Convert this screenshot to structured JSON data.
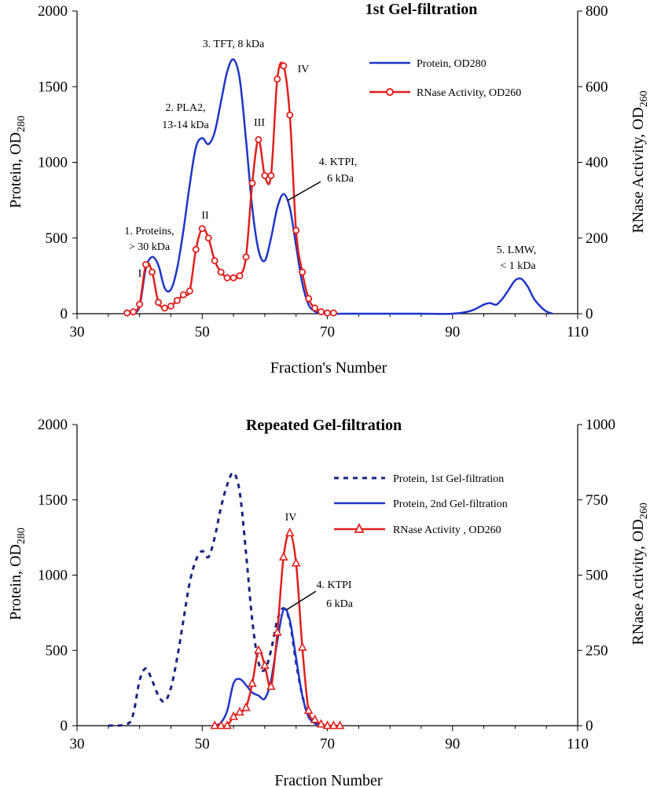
{
  "chart_data": [
    {
      "type": "line",
      "title": "1st Gel-filtration",
      "xlabel": "Fraction's Number",
      "ylabel_left": "Protein, OD",
      "ylabel_left_sub": "280",
      "ylabel_right": "RNase Activity, OD",
      "ylabel_right_sub": "260",
      "xlim": [
        30,
        110
      ],
      "ylim_left": [
        0,
        2000
      ],
      "ylim_right": [
        0,
        800
      ],
      "xticks": [
        "30",
        "50",
        "70",
        "90",
        "110"
      ],
      "yticks_left": [
        "0",
        "500",
        "1000",
        "1500",
        "2000"
      ],
      "yticks_right": [
        "0",
        "200",
        "400",
        "600",
        "800"
      ],
      "legend_position": "top-right",
      "series": [
        {
          "name": "Protein, OD280",
          "axis": "left",
          "color": "#1f35c9",
          "style": "solid",
          "marker": "none",
          "x": [
            39,
            40,
            41,
            42,
            43,
            44,
            45,
            46,
            47,
            48,
            49,
            50,
            51,
            52,
            53,
            54,
            55,
            56,
            57,
            58,
            59,
            60,
            61,
            62,
            63,
            64,
            65,
            66,
            67,
            68,
            69,
            70,
            75,
            80,
            85,
            90,
            93,
            95,
            96,
            97,
            98,
            99,
            100,
            101,
            102,
            103,
            104,
            105,
            106
          ],
          "y": [
            0,
            50,
            300,
            375,
            320,
            170,
            160,
            300,
            550,
            850,
            1100,
            1160,
            1120,
            1200,
            1400,
            1600,
            1680,
            1550,
            1150,
            700,
            420,
            350,
            500,
            700,
            790,
            700,
            450,
            200,
            60,
            15,
            5,
            0,
            0,
            0,
            0,
            0,
            20,
            60,
            70,
            60,
            100,
            160,
            220,
            230,
            180,
            100,
            50,
            15,
            0
          ]
        },
        {
          "name": "RNase Activity, OD260",
          "axis": "right",
          "color": "#e0201c",
          "style": "solid",
          "marker": "circle",
          "x": [
            38,
            39,
            40,
            41,
            42,
            43,
            44,
            45,
            46,
            47,
            48,
            49,
            50,
            51,
            52,
            53,
            54,
            55,
            56,
            57,
            58,
            59,
            60,
            61,
            62,
            63,
            64,
            65,
            66,
            67,
            68,
            69,
            70,
            71
          ],
          "y": [
            2,
            5,
            25,
            130,
            110,
            30,
            15,
            20,
            35,
            50,
            60,
            170,
            225,
            200,
            140,
            110,
            95,
            95,
            100,
            150,
            345,
            460,
            365,
            365,
            620,
            655,
            525,
            220,
            110,
            40,
            15,
            5,
            2,
            2
          ]
        }
      ],
      "annotations": {
        "a1a": "1. Proteins,",
        "a1b": "> 30 kDa",
        "a2a": "2. PLA2,",
        "a2b": "13-14 kDa",
        "a3": "3. TFT,  8 kDa",
        "a4a": "4. KTPI,",
        "a4b": "6 kDa",
        "a5a": "5. LMW,",
        "a5b": "< 1 kDa",
        "rI": "I",
        "rII": "II",
        "rIII": "III",
        "rIV": "IV"
      }
    },
    {
      "type": "line",
      "title": "Repeated Gel-filtration",
      "xlabel": "Fraction Number",
      "ylabel_left": "Protein, OD",
      "ylabel_left_sub": "280",
      "ylabel_right": "RNase Activity, OD",
      "ylabel_right_sub": "260",
      "xlim": [
        30,
        110
      ],
      "ylim_left": [
        0,
        2000
      ],
      "ylim_right": [
        0,
        1000
      ],
      "xticks": [
        "30",
        "50",
        "70",
        "90",
        "110"
      ],
      "yticks_left": [
        "0",
        "500",
        "1000",
        "1500",
        "2000"
      ],
      "yticks_right": [
        "0",
        "250",
        "500",
        "750",
        "1000"
      ],
      "legend_position": "top-right",
      "series": [
        {
          "name": "Protein, 1st Gel-filtration",
          "axis": "left",
          "color": "#1a237e",
          "style": "dotted",
          "marker": "none",
          "x": [
            35,
            38,
            39,
            40,
            41,
            42,
            43,
            44,
            45,
            46,
            47,
            48,
            49,
            50,
            51,
            52,
            53,
            54,
            55,
            56,
            57,
            58,
            59,
            60,
            61,
            62,
            63,
            64,
            65,
            66,
            67,
            68,
            69,
            70
          ],
          "y": [
            0,
            10,
            80,
            300,
            380,
            300,
            200,
            160,
            250,
            450,
            700,
            950,
            1100,
            1160,
            1120,
            1250,
            1450,
            1600,
            1680,
            1550,
            1150,
            700,
            420,
            370,
            500,
            700,
            780,
            690,
            420,
            200,
            60,
            20,
            5,
            0
          ]
        },
        {
          "name": "Protein, 2nd Gel-filtration",
          "axis": "left",
          "color": "#1f35c9",
          "style": "solid",
          "marker": "none",
          "x": [
            52,
            53,
            54,
            55,
            56,
            57,
            58,
            59,
            60,
            61,
            62,
            63,
            64,
            65,
            66,
            67,
            68,
            69
          ],
          "y": [
            0,
            20,
            100,
            280,
            310,
            270,
            220,
            200,
            180,
            300,
            560,
            770,
            700,
            450,
            200,
            60,
            15,
            0
          ]
        },
        {
          "name": "RNase Activity , OD260",
          "axis": "right",
          "color": "#e0201c",
          "style": "solid",
          "marker": "triangle",
          "x": [
            52,
            53,
            54,
            55,
            56,
            57,
            58,
            59,
            60,
            61,
            62,
            63,
            64,
            65,
            66,
            67,
            68,
            69,
            70,
            71,
            72
          ],
          "y": [
            0,
            0,
            0,
            30,
            45,
            60,
            140,
            250,
            200,
            130,
            310,
            560,
            640,
            540,
            260,
            50,
            20,
            5,
            0,
            0,
            0
          ]
        }
      ],
      "annotations": {
        "a4a": "4. KTPI",
        "a4b": "6 kDa",
        "rIV": "IV"
      }
    }
  ]
}
